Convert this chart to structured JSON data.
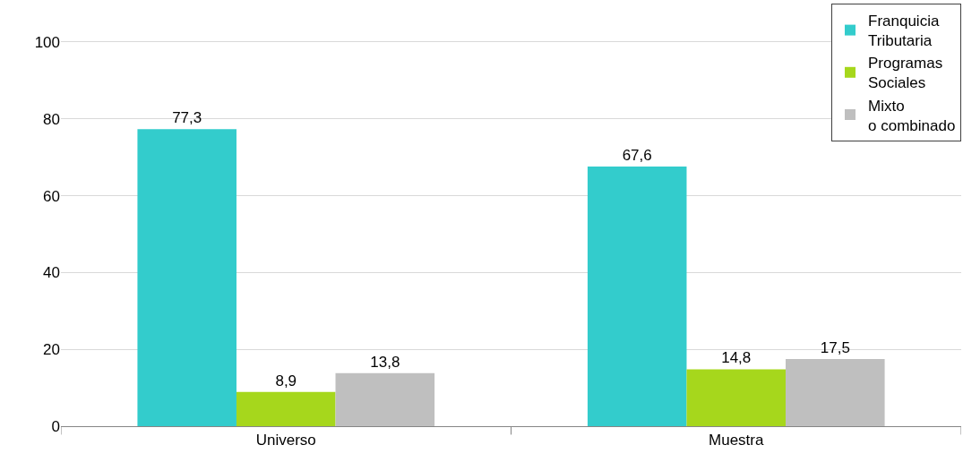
{
  "chart_data": {
    "type": "bar",
    "categories": [
      "Universo",
      "Muestra"
    ],
    "series": [
      {
        "name": "Franquicia Tributaria",
        "color": "#33cccc",
        "values": [
          77.3,
          67.6
        ],
        "value_labels": [
          "77,3",
          "67,6"
        ]
      },
      {
        "name": "Programas Sociales",
        "color": "#a6d71c",
        "values": [
          8.9,
          14.8
        ],
        "value_labels": [
          "8,9",
          "14,8"
        ]
      },
      {
        "name": "Mixto o combinado",
        "color": "#bfbfbf",
        "values": [
          13.8,
          17.5
        ],
        "value_labels": [
          "13,8",
          "17,5"
        ]
      }
    ],
    "ylim": [
      0,
      110
    ],
    "yticks": [
      0,
      20,
      40,
      60,
      80,
      100
    ],
    "grid": "y",
    "legend": "top right"
  }
}
